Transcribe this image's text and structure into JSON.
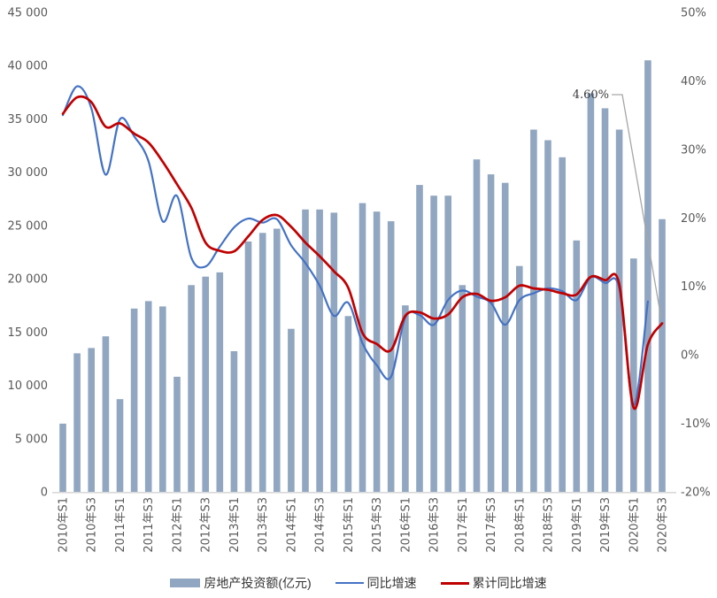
{
  "chart_data": {
    "type": "combo-bar-line",
    "title": "",
    "categories": [
      "2010年S1",
      "2010年S2",
      "2010年S3",
      "2010年S4",
      "2011年S1",
      "2011年S2",
      "2011年S3",
      "2011年S4",
      "2012年S1",
      "2012年S2",
      "2012年S3",
      "2012年S4",
      "2013年S1",
      "2013年S2",
      "2013年S3",
      "2013年S4",
      "2014年S1",
      "2014年S2",
      "2014年S3",
      "2014年S4",
      "2015年S1",
      "2015年S2",
      "2015年S3",
      "2015年S4",
      "2016年S1",
      "2016年S2",
      "2016年S3",
      "2016年S4",
      "2017年S1",
      "2017年S2",
      "2017年S3",
      "2017年S4",
      "2018年S1",
      "2018年S2",
      "2018年S3",
      "2018年S4",
      "2019年S1",
      "2019年S2",
      "2019年S3",
      "2019年S4",
      "2020年S1",
      "2020年S2",
      "2020年S3"
    ],
    "x_tick_labels_shown_every": 2,
    "series": [
      {
        "name": "房地产投资额(亿元)",
        "type": "bar",
        "axis": "left",
        "color": "#91A6C0",
        "values": [
          6400,
          13000,
          13500,
          14600,
          8700,
          17200,
          17900,
          17400,
          10800,
          19400,
          20200,
          20600,
          13200,
          23500,
          24300,
          24700,
          15300,
          26500,
          26500,
          26200,
          16500,
          27100,
          26300,
          25400,
          17500,
          28800,
          27800,
          27800,
          19400,
          31200,
          29800,
          29000,
          21200,
          34000,
          33000,
          31400,
          23600,
          37400,
          36000,
          34000,
          21900,
          40500,
          25600
        ]
      },
      {
        "name": "同比增速",
        "type": "line",
        "axis": "right",
        "color": "#4472C4",
        "values_pct": [
          35.0,
          39.2,
          36.0,
          26.3,
          34.4,
          31.9,
          28.3,
          19.5,
          23.2,
          14.2,
          12.9,
          15.8,
          18.6,
          19.9,
          19.3,
          19.8,
          16.0,
          13.4,
          10.1,
          5.7,
          7.6,
          1.7,
          -1.5,
          -3.2,
          5.5,
          5.8,
          4.4,
          8.0,
          9.4,
          8.5,
          7.6,
          4.4,
          8.0,
          9.0,
          9.7,
          9.3,
          8.0,
          11.3,
          10.5,
          9.7,
          -7.3,
          7.8,
          null
        ]
      },
      {
        "name": "累计同比增速",
        "type": "line",
        "axis": "right",
        "color": "#C00000",
        "values_pct": [
          35.2,
          37.6,
          36.9,
          33.3,
          33.8,
          32.3,
          31.0,
          28.2,
          24.9,
          21.5,
          16.4,
          15.2,
          15.1,
          17.3,
          19.7,
          20.4,
          18.7,
          16.4,
          14.4,
          12.2,
          9.8,
          3.2,
          1.6,
          0.7,
          5.7,
          6.2,
          5.3,
          5.9,
          8.4,
          8.9,
          7.9,
          8.4,
          10.1,
          9.7,
          9.5,
          9.0,
          8.8,
          11.4,
          10.9,
          10.3,
          -7.7,
          1.5,
          4.6
        ]
      }
    ],
    "left_axis": {
      "min": 0,
      "max": 45000,
      "step": 5000,
      "tick_labels": [
        "0",
        "5 000",
        "10 000",
        "15 000",
        "20 000",
        "25 000",
        "30 000",
        "35 000",
        "40 000",
        "45 000"
      ]
    },
    "right_axis": {
      "min": -20,
      "max": 50,
      "step": 10,
      "tick_labels": [
        "-20%",
        "-10%",
        "0%",
        "10%",
        "20%",
        "30%",
        "40%",
        "50%"
      ]
    },
    "grid": "off",
    "legend_position": "bottom",
    "annotation": {
      "text": "4.60%",
      "series": "累计同比增速",
      "category": "2020年S3",
      "value_pct": 4.6
    },
    "legend": {
      "items": [
        "房地产投资额(亿元)",
        "同比增速",
        "累计同比增速"
      ]
    }
  },
  "colors": {
    "bar": "#91A6C0",
    "yoy_line": "#4472C4",
    "cum_line": "#C00000",
    "axis_text": "#595959",
    "axis_line": "#D9D9D9",
    "leader_line": "#A6A6A6"
  }
}
